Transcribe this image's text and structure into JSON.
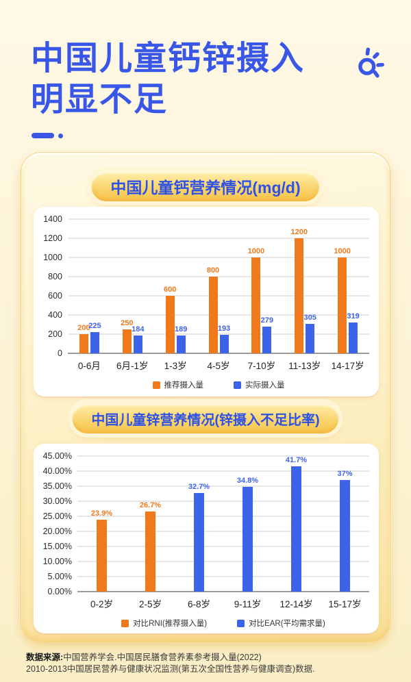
{
  "page": {
    "title_line1": "中国儿童钙锌摄入",
    "title_line2": "明显不足",
    "footer_source_label": "数据来源:",
    "footer_line1": "中国营养学会.中国居民膳食营养素参考摄入量(2022)",
    "footer_line2": "2010-2013中国居民营养与健康状况监测(第五次全国性营养与健康调查)数据."
  },
  "colors": {
    "accent_blue": "#3856E8",
    "bar_orange": "#F0791C",
    "bar_blue": "#3D63E8",
    "page_background_top": "#FFF8E6",
    "page_background_bottom": "#FAEFC6",
    "gold_card": "#F8DE95"
  },
  "icons": {
    "decoration": "sun-icon"
  },
  "chart_data": [
    {
      "type": "bar",
      "title": "中国儿童钙营养情况(mg/d)",
      "categories": [
        "0-6月",
        "6月-1岁",
        "1-3岁",
        "4-5岁",
        "7-10岁",
        "11-13岁",
        "14-17岁"
      ],
      "series": [
        {
          "name": "推荐摄入量",
          "color": "#F0791C",
          "values": [
            200,
            250,
            600,
            800,
            1000,
            1200,
            1000
          ],
          "labels": [
            "200",
            "250",
            "600",
            "800",
            "1000",
            "1200",
            "1000"
          ]
        },
        {
          "name": "实际摄入量",
          "color": "#3D63E8",
          "values": [
            225,
            184,
            189,
            193,
            279,
            305,
            319
          ],
          "labels": [
            "225",
            "184",
            "189",
            "193",
            "279",
            "305",
            "319"
          ]
        }
      ],
      "xlabel": "",
      "ylabel": "",
      "ylim": [
        0,
        1400
      ],
      "yticks": [
        "1400",
        "1200",
        "1000",
        "800",
        "600",
        "400",
        "200",
        "0"
      ],
      "grid": true,
      "legend_position": "bottom"
    },
    {
      "type": "bar",
      "title": "中国儿童锌营养情况(锌摄入不足比率)",
      "categories": [
        "0-2岁",
        "2-5岁",
        "6-8岁",
        "9-11岁",
        "12-14岁",
        "15-17岁"
      ],
      "series": [
        {
          "name": "对比RNI(推荐摄入量)",
          "color": "#F0791C",
          "values": [
            23.9,
            26.7,
            null,
            null,
            null,
            null
          ],
          "labels": [
            "23.9%",
            "26.7%",
            null,
            null,
            null,
            null
          ]
        },
        {
          "name": "对比EAR(平均需求量)",
          "color": "#3D63E8",
          "values": [
            null,
            null,
            32.7,
            34.8,
            41.7,
            37
          ],
          "labels": [
            null,
            null,
            "32.7%",
            "34.8%",
            "41.7%",
            "37%"
          ]
        }
      ],
      "xlabel": "",
      "ylabel": "",
      "ylim": [
        0,
        45
      ],
      "yticks": [
        "45.00%",
        "40.00%",
        "35.00%",
        "30.00%",
        "25.00%",
        "20.00%",
        "15.00%",
        "10.00%",
        "5.00%",
        "0.00%"
      ],
      "grid": true,
      "legend_position": "bottom"
    }
  ]
}
